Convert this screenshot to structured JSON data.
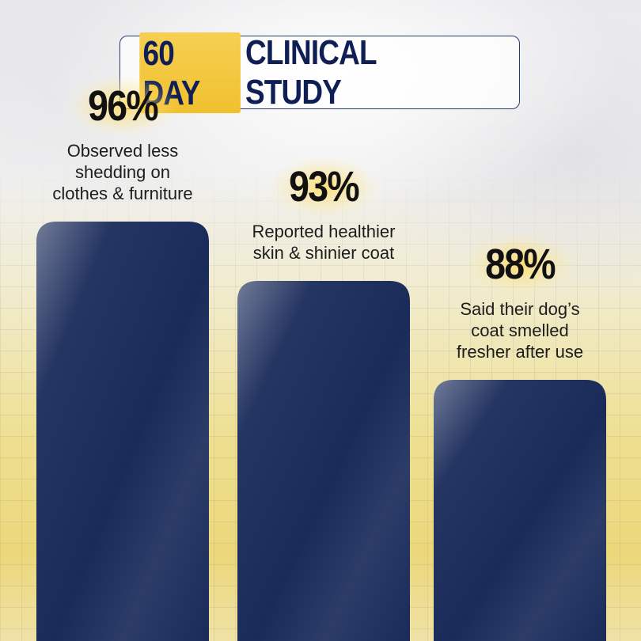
{
  "header": {
    "highlight": "60 DAY",
    "title": "CLINICAL STUDY"
  },
  "colors": {
    "bar": "#1a2b5a",
    "highlight": "#f2c335",
    "title_text": "#0f1f55"
  },
  "chart_data": {
    "type": "bar",
    "categories": [
      "Observed less shedding on clothes & furniture",
      "Reported healthier skin & shinier coat",
      "Said their dog’s coat smelled fresher after use"
    ],
    "values": [
      96,
      93,
      88
    ],
    "value_labels": [
      "96%",
      "93%",
      "88%"
    ],
    "description_lines": [
      [
        "Observed less",
        "shedding on",
        "clothes & furniture"
      ],
      [
        "Reported healthier",
        "skin & shinier coat"
      ],
      [
        "Said their dog’s",
        "coat smelled",
        "fresher after use"
      ]
    ],
    "ylim": [
      0,
      100
    ],
    "grid": true,
    "legend": "none"
  }
}
